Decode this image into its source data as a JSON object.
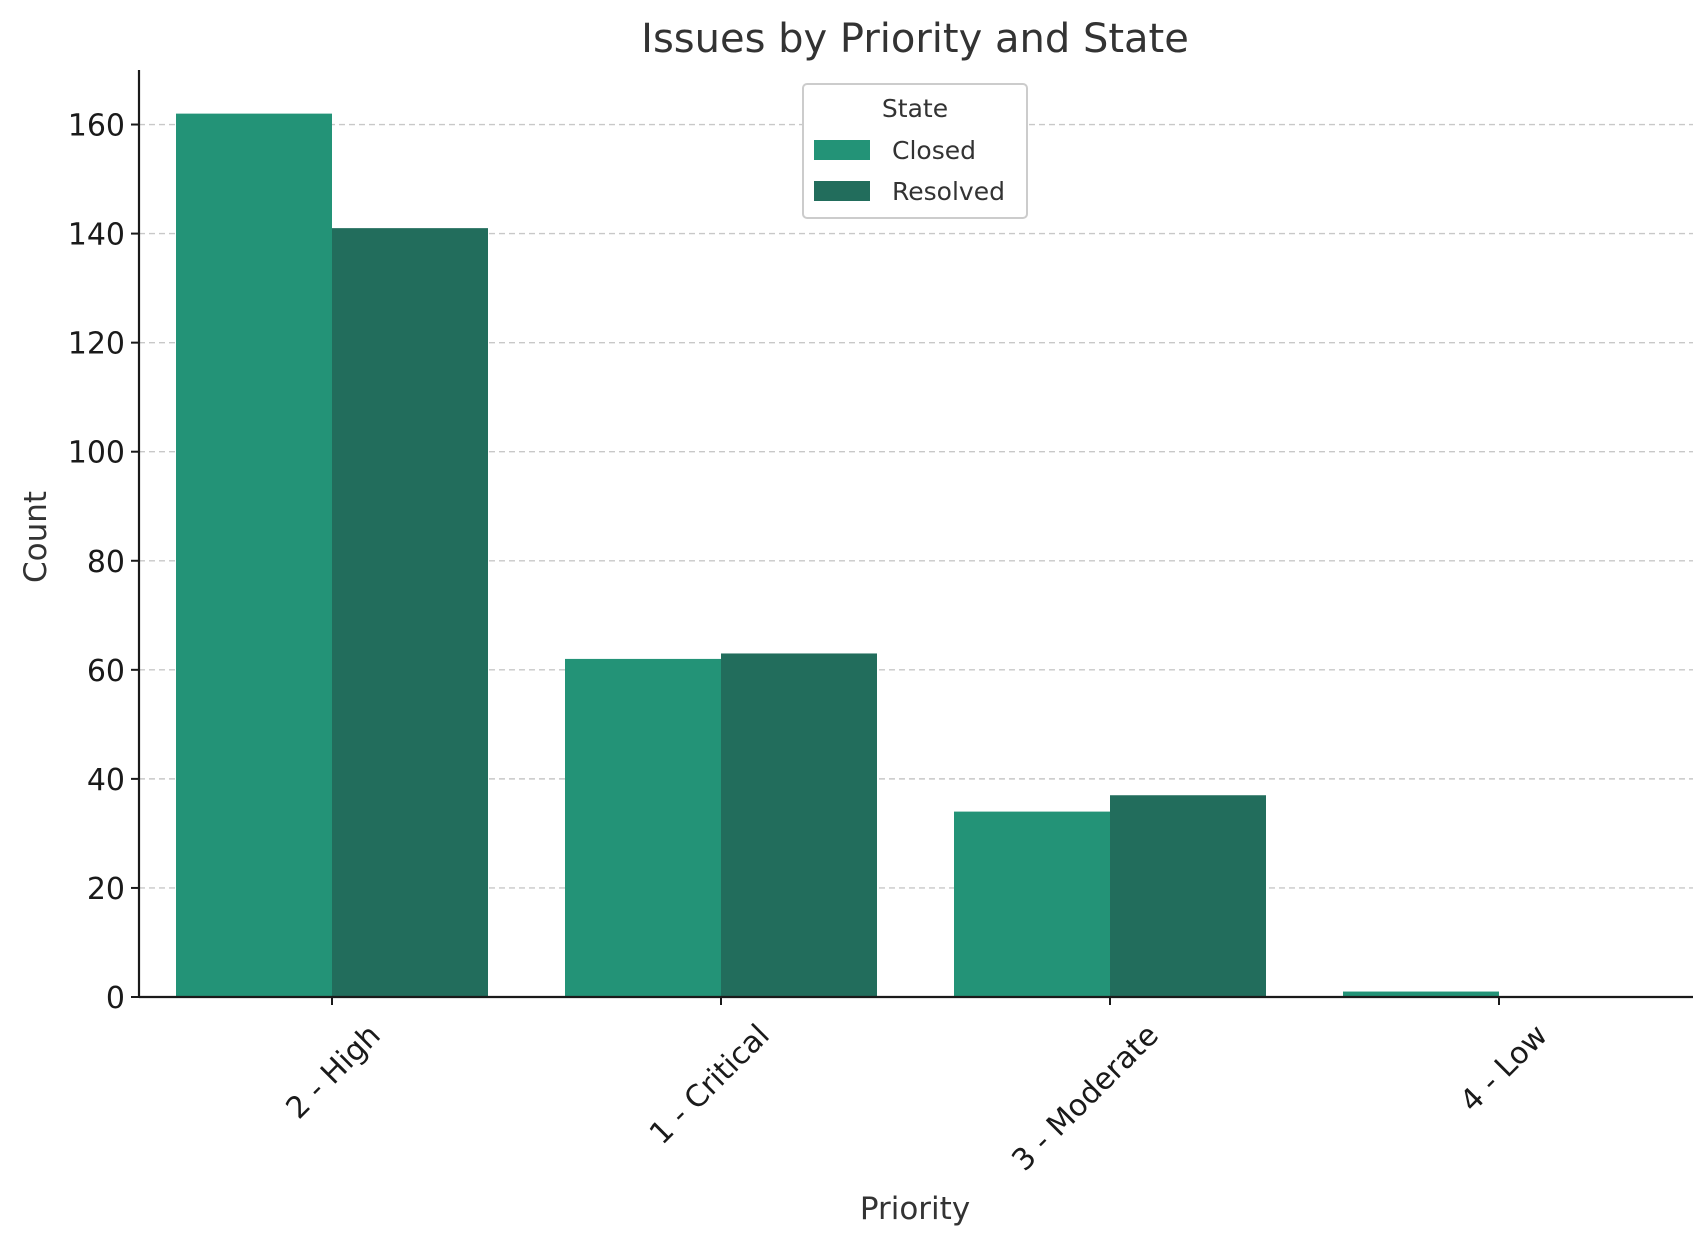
{
  "chart_data": {
    "type": "bar",
    "title": "Issues by Priority and State",
    "xlabel": "Priority",
    "ylabel": "Count",
    "categories": [
      "2 - High",
      "1 - Critical",
      "3 - Moderate",
      "4 - Low"
    ],
    "series": [
      {
        "name": "Closed",
        "values": [
          162,
          62,
          34,
          1
        ],
        "color": "#239377"
      },
      {
        "name": "Resolved",
        "values": [
          141,
          63,
          37,
          0
        ],
        "color": "#226d5c"
      }
    ],
    "ylim": [
      0,
      170
    ],
    "yticks": [
      0,
      20,
      40,
      60,
      80,
      100,
      120,
      140,
      160
    ],
    "grid": true,
    "legend": {
      "title": "State",
      "placement": "top-center"
    }
  }
}
